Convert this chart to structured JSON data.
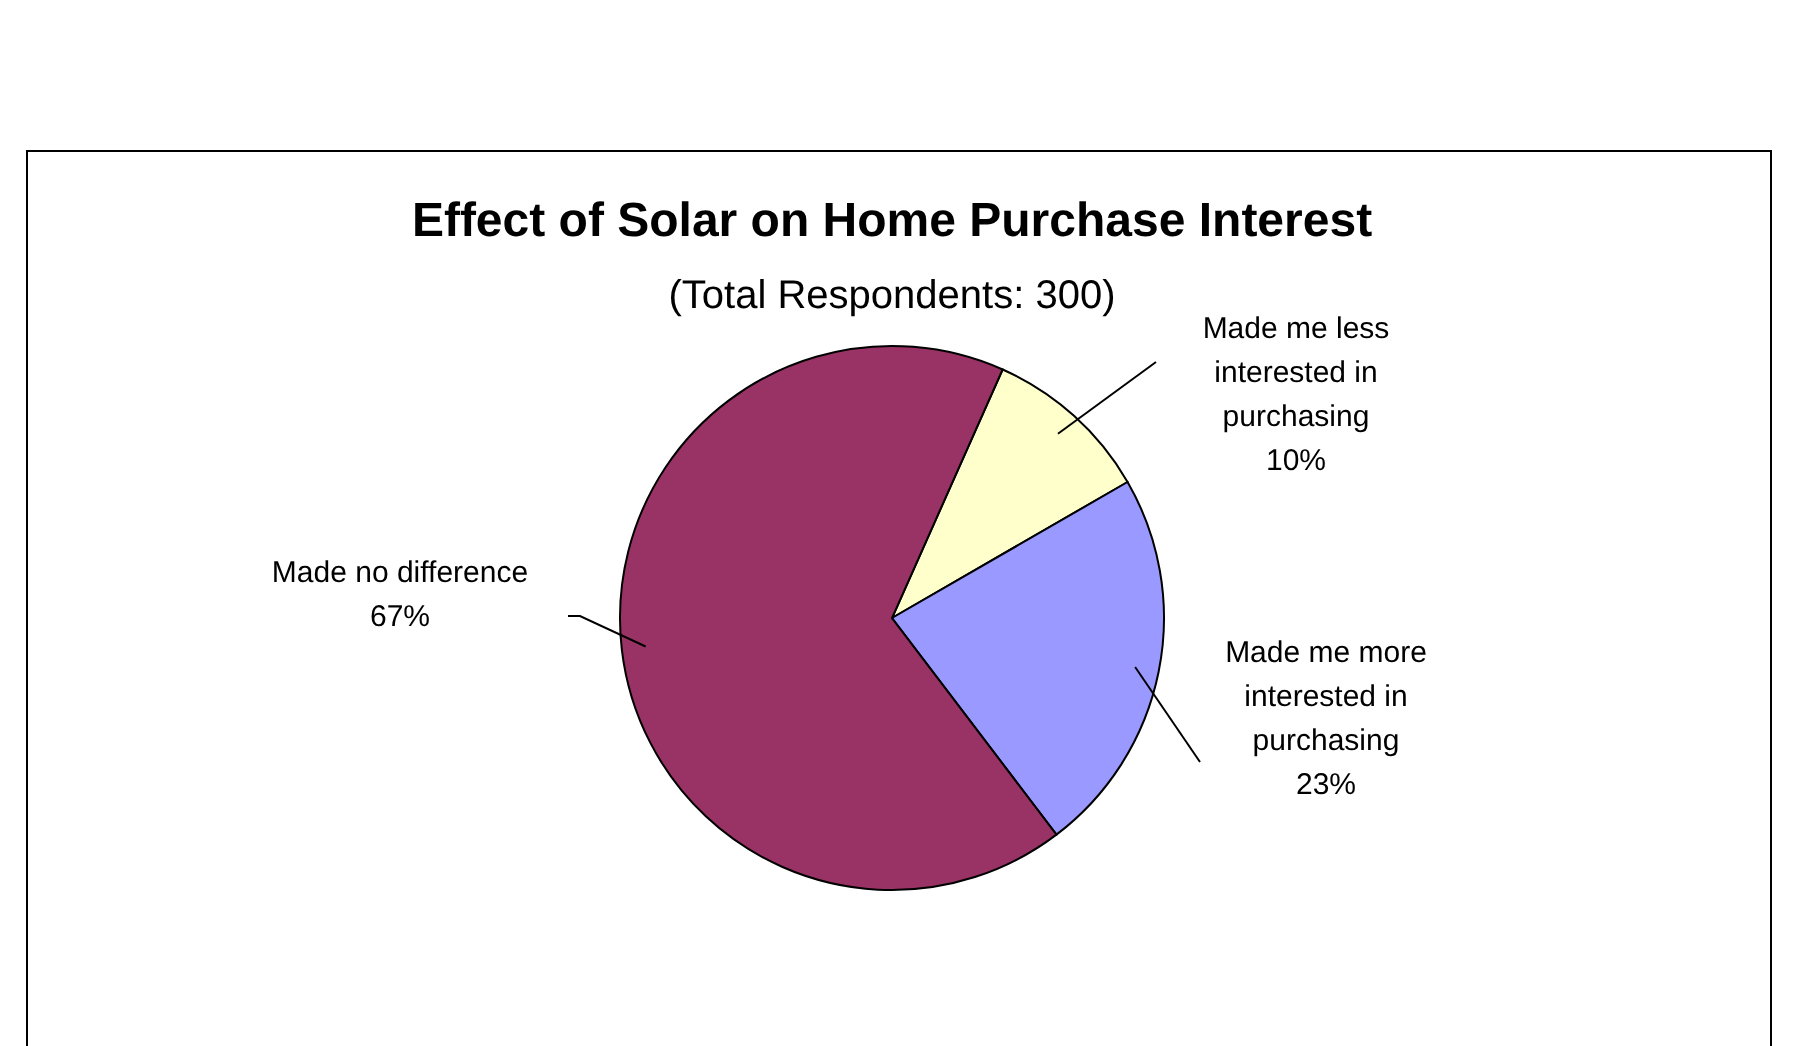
{
  "chart_data": {
    "type": "pie",
    "title": "Effect of Solar on Home Purchase Interest",
    "subtitle": "(Total Respondents: 300)",
    "categories": [
      "Made me less interested in purchasing",
      "Made me more interested in purchasing",
      "Made no difference"
    ],
    "values": [
      10,
      23,
      67
    ],
    "colors": [
      "#ffffcc",
      "#9999ff",
      "#993366"
    ],
    "value_labels": [
      "10%",
      "23%",
      "67%"
    ]
  }
}
